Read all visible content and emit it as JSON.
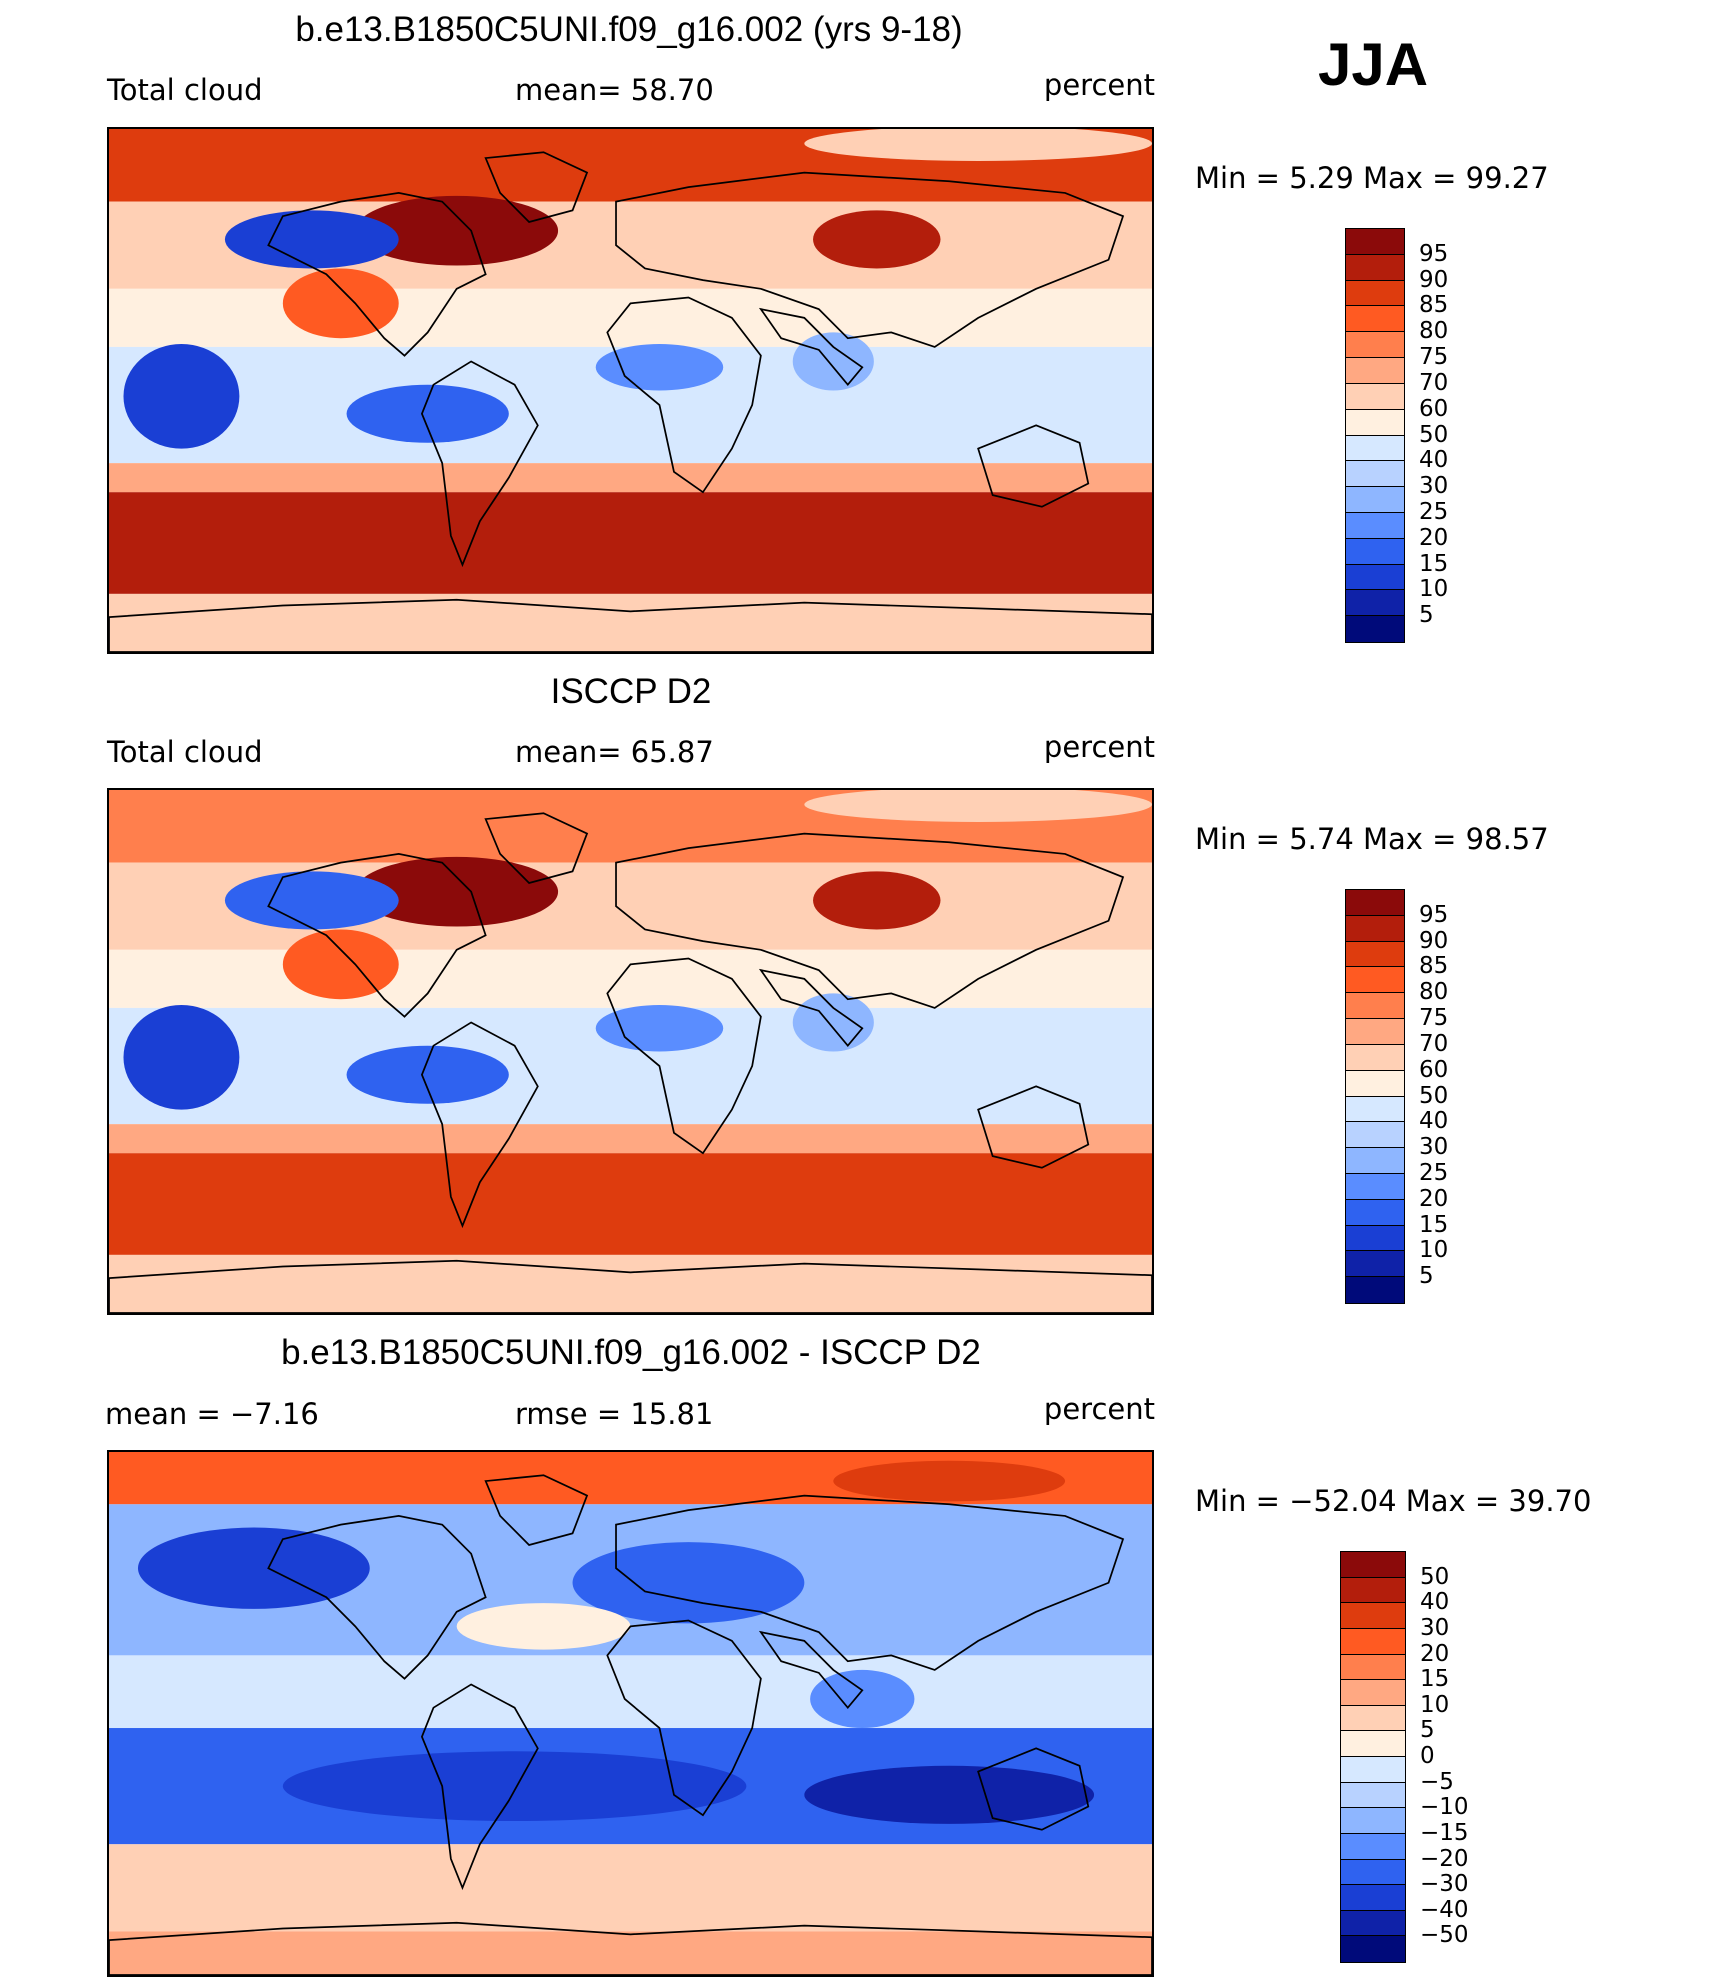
{
  "season": "JJA",
  "panels": [
    {
      "title": "b.e13.B1850C5UNI.f09_g16.002 (yrs 9-18)",
      "left_label": "Total cloud",
      "center_label": "mean=   58.70",
      "right_label": "percent",
      "minmax": "Min =    5.29  Max =    99.27",
      "kind": "abs",
      "colorbar": {
        "levels": [
          "95",
          "90",
          "85",
          "80",
          "75",
          "70",
          "60",
          "50",
          "40",
          "30",
          "25",
          "20",
          "15",
          "10",
          "5"
        ],
        "colors": [
          "#8b0a0a",
          "#b31e0c",
          "#de3c0e",
          "#ff5a22",
          "#ff7f4d",
          "#ffa882",
          "#ffd0b5",
          "#fff0e0",
          "#d6e8ff",
          "#b8d2ff",
          "#8eb6ff",
          "#5a8dff",
          "#2f62f0",
          "#1a3fd4",
          "#0f22a8",
          "#000a7a"
        ]
      }
    },
    {
      "title": "ISCCP D2",
      "left_label": "Total cloud",
      "center_label": "mean=   65.87",
      "right_label": "percent",
      "minmax": "Min =    5.74  Max =    98.57",
      "kind": "abs",
      "colorbar": {
        "levels": [
          "95",
          "90",
          "85",
          "80",
          "75",
          "70",
          "60",
          "50",
          "40",
          "30",
          "25",
          "20",
          "15",
          "10",
          "5"
        ],
        "colors": [
          "#8b0a0a",
          "#b31e0c",
          "#de3c0e",
          "#ff5a22",
          "#ff7f4d",
          "#ffa882",
          "#ffd0b5",
          "#fff0e0",
          "#d6e8ff",
          "#b8d2ff",
          "#8eb6ff",
          "#5a8dff",
          "#2f62f0",
          "#1a3fd4",
          "#0f22a8",
          "#000a7a"
        ]
      }
    },
    {
      "title": "b.e13.B1850C5UNI.f09_g16.002 - ISCCP D2",
      "left_label": "mean =    −7.16",
      "center_label": "rmse =    15.81",
      "right_label": "percent",
      "minmax": "Min = −52.04  Max =    39.70",
      "kind": "diff",
      "colorbar": {
        "levels": [
          "50",
          "40",
          "30",
          "20",
          "15",
          "10",
          "5",
          "0",
          "−5",
          "−10",
          "−15",
          "−20",
          "−30",
          "−40",
          "−50"
        ],
        "colors": [
          "#8b0a0a",
          "#b31e0c",
          "#de3c0e",
          "#ff5a22",
          "#ff7f4d",
          "#ffa882",
          "#ffd0b5",
          "#fff0e0",
          "#d6e8ff",
          "#b8d2ff",
          "#8eb6ff",
          "#5a8dff",
          "#2f62f0",
          "#1a3fd4",
          "#0f22a8",
          "#000a7a"
        ]
      }
    }
  ]
}
